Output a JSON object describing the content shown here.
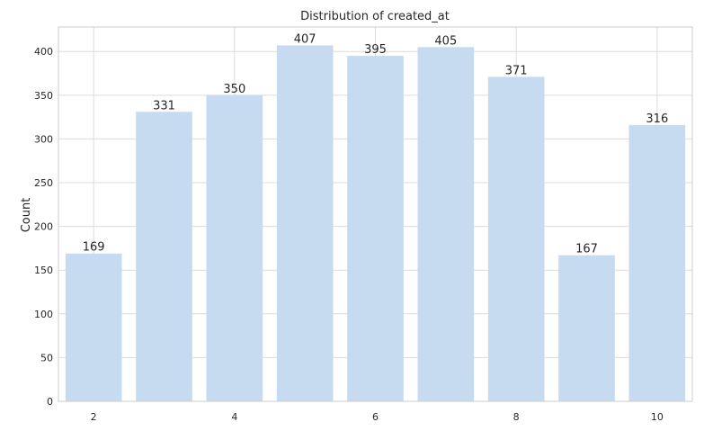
{
  "chart_data": {
    "type": "bar",
    "title": "Distribution of created_at",
    "xlabel": "",
    "ylabel": "Count",
    "x": [
      2,
      3,
      4,
      5,
      6,
      7,
      8,
      9,
      10
    ],
    "values": [
      169,
      331,
      350,
      407,
      395,
      405,
      371,
      167,
      316
    ],
    "data_labels": [
      "169",
      "331",
      "350",
      "407",
      "395",
      "405",
      "371",
      "167",
      "316"
    ],
    "xticks": [
      2,
      4,
      6,
      8,
      10
    ],
    "xtick_labels": [
      "2",
      "4",
      "6",
      "8",
      "10"
    ],
    "yticks": [
      0,
      50,
      100,
      150,
      200,
      250,
      300,
      350,
      400
    ],
    "ytick_labels": [
      "0",
      "50",
      "100",
      "150",
      "200",
      "250",
      "300",
      "350",
      "400"
    ],
    "xlim": [
      1.5,
      10.5
    ],
    "ylim": [
      0,
      428
    ],
    "grid": true,
    "legend": "none",
    "bar_color": "#c6dbef",
    "grid_color": "#dcdcdc",
    "axes_edge_color": "#cccccc"
  }
}
